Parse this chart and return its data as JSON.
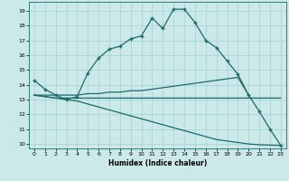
{
  "xlabel": "Humidex (Indice chaleur)",
  "xlim": [
    -0.5,
    23.5
  ],
  "ylim": [
    9.7,
    19.6
  ],
  "yticks": [
    10,
    11,
    12,
    13,
    14,
    15,
    16,
    17,
    18,
    19
  ],
  "xticks": [
    0,
    1,
    2,
    3,
    4,
    5,
    6,
    7,
    8,
    9,
    10,
    11,
    12,
    13,
    14,
    15,
    16,
    17,
    18,
    19,
    20,
    21,
    22,
    23
  ],
  "bg_color": "#cce9e9",
  "grid_color": "#aad4d4",
  "line_color": "#1a6b6b",
  "line1": {
    "x": [
      0,
      1,
      2,
      3,
      4,
      5,
      6,
      7,
      8,
      9,
      10,
      11,
      12,
      13,
      14,
      15,
      16,
      17,
      18,
      19,
      20,
      21,
      22,
      23
    ],
    "y": [
      14.3,
      13.7,
      13.3,
      13.0,
      13.2,
      14.8,
      15.8,
      16.4,
      16.6,
      17.1,
      17.3,
      18.5,
      17.8,
      19.1,
      19.1,
      18.2,
      17.0,
      16.5,
      15.6,
      14.7,
      13.3,
      12.2,
      11.0,
      9.9
    ]
  },
  "line2": {
    "x": [
      0,
      2,
      3,
      4,
      5,
      6,
      7,
      8,
      9,
      10,
      11,
      12,
      13,
      14,
      15,
      16,
      17,
      18,
      19,
      20
    ],
    "y": [
      13.3,
      13.3,
      13.3,
      13.3,
      13.4,
      13.4,
      13.5,
      13.5,
      13.6,
      13.6,
      13.7,
      13.8,
      13.9,
      14.0,
      14.1,
      14.2,
      14.3,
      14.4,
      14.5,
      13.3
    ]
  },
  "line3": {
    "x": [
      0,
      2,
      3,
      4,
      5,
      6,
      7,
      8,
      9,
      10,
      11,
      12,
      13,
      14,
      15,
      16,
      17,
      18,
      19,
      20,
      21,
      22,
      23
    ],
    "y": [
      13.3,
      13.1,
      13.1,
      13.1,
      13.1,
      13.1,
      13.1,
      13.1,
      13.1,
      13.1,
      13.1,
      13.1,
      13.1,
      13.1,
      13.1,
      13.1,
      13.1,
      13.1,
      13.1,
      13.1,
      13.1,
      13.1,
      13.1
    ]
  },
  "line4": {
    "x": [
      0,
      2,
      3,
      4,
      5,
      6,
      7,
      8,
      9,
      10,
      11,
      12,
      13,
      14,
      15,
      16,
      17,
      18,
      19,
      20,
      21,
      22,
      23
    ],
    "y": [
      13.3,
      13.1,
      13.0,
      12.9,
      12.7,
      12.5,
      12.3,
      12.1,
      11.9,
      11.7,
      11.5,
      11.3,
      11.1,
      10.9,
      10.7,
      10.5,
      10.3,
      10.2,
      10.1,
      10.0,
      9.95,
      9.92,
      9.9
    ]
  }
}
